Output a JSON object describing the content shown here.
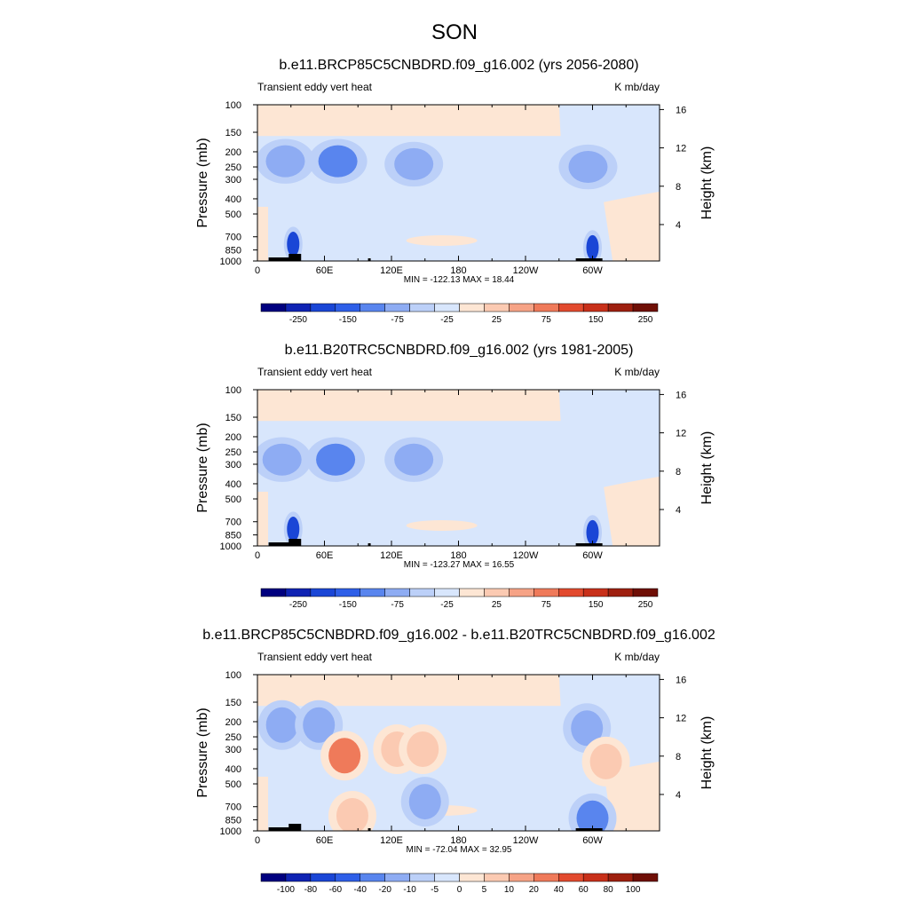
{
  "figure": {
    "title": "SON"
  },
  "chart_data": [
    {
      "type": "heatmap",
      "title": "b.e11.BRCP85C5CNBDRD.f09_g16.002 (yrs 2056-2080)",
      "left_label": "Transient eddy vert heat",
      "right_label": "K mb/day",
      "ylabel": "Pressure (mb)",
      "y2label": "Height (km)",
      "x_ticks": [
        "0",
        "60E",
        "120E",
        "180",
        "120W",
        "60W"
      ],
      "y_ticks": [
        "100",
        "150",
        "200",
        "250",
        "300",
        "400",
        "500",
        "700",
        "850",
        "1000"
      ],
      "y2_ticks": [
        "4",
        "8",
        "12",
        "16"
      ],
      "stats": "MIN = -122.13  MAX =  18.44",
      "colorbar_labels": [
        "-250",
        "-150",
        "-75",
        "-25",
        "25",
        "75",
        "150",
        "250"
      ],
      "min": -122.13,
      "max": 18.44,
      "features": [
        {
          "lon": 25,
          "p": 230,
          "value": -40
        },
        {
          "lon": 72,
          "p": 230,
          "value": -60
        },
        {
          "lon": 140,
          "p": 240,
          "value": -40
        },
        {
          "lon": 32,
          "p": 780,
          "value": -100
        },
        {
          "lon": 300,
          "p": 820,
          "value": -120
        },
        {
          "lon": 296,
          "p": 250,
          "value": -40
        }
      ]
    },
    {
      "type": "heatmap",
      "title": "b.e11.B20TRC5CNBDRD.f09_g16.002 (yrs 1981-2005)",
      "left_label": "Transient eddy vert heat",
      "right_label": "K mb/day",
      "ylabel": "Pressure (mb)",
      "y2label": "Height (km)",
      "x_ticks": [
        "0",
        "60E",
        "120E",
        "180",
        "120W",
        "60W"
      ],
      "y_ticks": [
        "100",
        "150",
        "200",
        "250",
        "300",
        "400",
        "500",
        "700",
        "850",
        "1000"
      ],
      "y2_ticks": [
        "4",
        "8",
        "12",
        "16"
      ],
      "stats": "MIN = -123.27  MAX =  16.55",
      "colorbar_labels": [
        "-250",
        "-150",
        "-75",
        "-25",
        "25",
        "75",
        "150",
        "250"
      ],
      "min": -123.27,
      "max": 16.55,
      "features": [
        {
          "lon": 22,
          "p": 280,
          "value": -40
        },
        {
          "lon": 70,
          "p": 280,
          "value": -70
        },
        {
          "lon": 140,
          "p": 280,
          "value": -40
        },
        {
          "lon": 32,
          "p": 780,
          "value": -100
        },
        {
          "lon": 300,
          "p": 820,
          "value": -120
        }
      ]
    },
    {
      "type": "heatmap",
      "title": "b.e11.BRCP85C5CNBDRD.f09_g16.002 - b.e11.B20TRC5CNBDRD.f09_g16.002",
      "left_label": "Transient eddy vert heat",
      "right_label": "K mb/day",
      "ylabel": "Pressure (mb)",
      "y2label": "Height (km)",
      "x_ticks": [
        "0",
        "60E",
        "120E",
        "180",
        "120W",
        "60W"
      ],
      "y_ticks": [
        "100",
        "150",
        "200",
        "250",
        "300",
        "400",
        "500",
        "700",
        "850",
        "1000"
      ],
      "y2_ticks": [
        "4",
        "8",
        "12",
        "16"
      ],
      "stats": "MIN = -72.04  MAX =  32.95",
      "colorbar_labels": [
        "-100",
        "-80",
        "-60",
        "-40",
        "-20",
        "-10",
        "-5",
        "0",
        "5",
        "10",
        "20",
        "40",
        "60",
        "80",
        "100"
      ],
      "min": -72.04,
      "max": 32.95,
      "features": [
        {
          "lon": 22,
          "p": 210,
          "value": -30
        },
        {
          "lon": 55,
          "p": 210,
          "value": -40
        },
        {
          "lon": 78,
          "p": 330,
          "value": 32
        },
        {
          "lon": 125,
          "p": 300,
          "value": 15
        },
        {
          "lon": 148,
          "p": 300,
          "value": 12
        },
        {
          "lon": 150,
          "p": 650,
          "value": -20
        },
        {
          "lon": 295,
          "p": 220,
          "value": -30
        },
        {
          "lon": 300,
          "p": 830,
          "value": -70
        },
        {
          "lon": 85,
          "p": 800,
          "value": 15
        },
        {
          "lon": 312,
          "p": 360,
          "value": 12
        }
      ]
    }
  ]
}
